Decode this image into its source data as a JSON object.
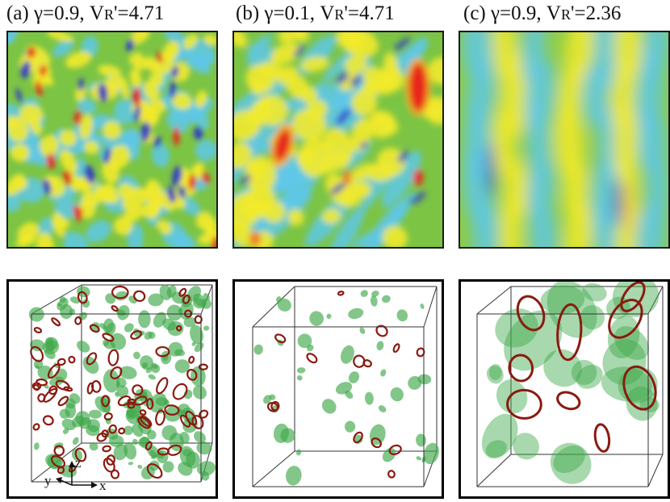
{
  "figure": {
    "panels": [
      {
        "id": "a",
        "label": "(a) γ=0.9, V",
        "sub": "R",
        "suffix": "'=4.71"
      },
      {
        "id": "b",
        "label": "(b) γ=0.1, V",
        "sub": "R",
        "suffix": "'=4.71"
      },
      {
        "id": "c",
        "label": "(c) γ=0.9, V",
        "sub": "R",
        "suffix": "'=2.36"
      }
    ],
    "axes": {
      "x": "x",
      "y": "y",
      "z": "z"
    },
    "colors": {
      "background": "#7cc444",
      "low": "#2b35c9",
      "mid_low": "#5ec8e8",
      "mid_high": "#f2ea2c",
      "high": "#e8261c",
      "isosurface": "#3fa94a",
      "vortex_core": "#8b1a10"
    }
  }
}
